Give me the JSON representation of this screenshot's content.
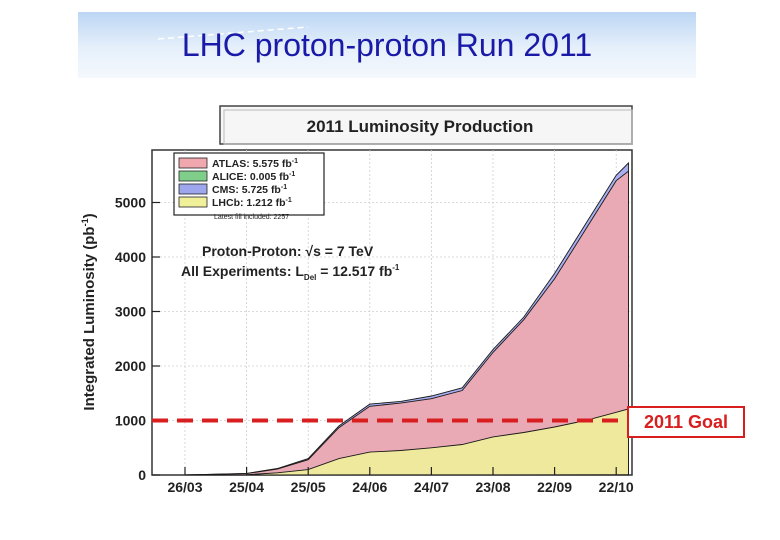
{
  "header": {
    "title": "LHC proton-proton Run 2011"
  },
  "chart_data": {
    "type": "area",
    "title": "2011 Luminosity Production",
    "ylabel": "Integrated Luminosity (pb",
    "ylabel_sup": "-1",
    "ylabel_close": ")",
    "ylim": [
      0,
      5800
    ],
    "y_ticks": [
      0,
      1000,
      2000,
      3000,
      4000,
      5000
    ],
    "x_tick_labels": [
      "26/03",
      "25/04",
      "25/05",
      "24/06",
      "24/07",
      "23/08",
      "22/09",
      "22/10"
    ],
    "xlim": [
      0,
      7.3
    ],
    "legend": {
      "placement": "top-left",
      "entries": [
        {
          "name": "ATLAS: 5.575 fb",
          "sup": "-1",
          "color": "#f0a8ae"
        },
        {
          "name": "ALICE: 0.005 fb",
          "sup": "-1",
          "color": "#7fcf8a"
        },
        {
          "name": "CMS: 5.725 fb",
          "sup": "-1",
          "color": "#9ea6ee"
        },
        {
          "name": "LHCb: 1.212 fb",
          "sup": "-1",
          "color": "#f0ef9a"
        }
      ],
      "note": "Latest fill included: 2257"
    },
    "annotations": {
      "line1_pre": "Proton-Proton: ",
      "line1_sqrt": "√",
      "line1_post": "s = 7 TeV",
      "line2_pre": "All Experiments: L",
      "line2_sub": "Del",
      "line2_post": " = 12.517 fb",
      "line2_sup": "-1"
    },
    "goal": {
      "label": "2011 Goal",
      "value": 1000,
      "color": "#d81e1e"
    },
    "series": [
      {
        "name": "CMS",
        "color": "#9ea6ee",
        "x": [
          0,
          1.0,
          1.5,
          2.0,
          2.5,
          3.0,
          3.5,
          4.0,
          4.5,
          5.0,
          5.5,
          6.0,
          6.5,
          7.0,
          7.2
        ],
        "values": [
          0,
          30,
          120,
          300,
          900,
          1300,
          1350,
          1450,
          1600,
          2300,
          2900,
          3700,
          4600,
          5500,
          5725
        ]
      },
      {
        "name": "ATLAS",
        "color": "#f0a8ae",
        "x": [
          0,
          1.0,
          1.5,
          2.0,
          2.5,
          3.0,
          3.5,
          4.0,
          4.5,
          5.0,
          5.5,
          6.0,
          6.5,
          7.0,
          7.2
        ],
        "values": [
          0,
          25,
          110,
          280,
          870,
          1260,
          1320,
          1400,
          1550,
          2250,
          2850,
          3600,
          4500,
          5400,
          5575
        ]
      },
      {
        "name": "LHCb",
        "color": "#f0ef9a",
        "x": [
          0,
          1.0,
          1.5,
          2.0,
          2.5,
          3.0,
          3.5,
          4.0,
          4.5,
          5.0,
          5.5,
          6.0,
          6.5,
          7.0,
          7.2
        ],
        "values": [
          0,
          5,
          40,
          100,
          300,
          420,
          450,
          500,
          560,
          700,
          780,
          880,
          1000,
          1150,
          1212
        ]
      },
      {
        "name": "ALICE",
        "color": "#7fcf8a",
        "x": [
          0,
          7.2
        ],
        "values": [
          0,
          5
        ]
      }
    ]
  }
}
